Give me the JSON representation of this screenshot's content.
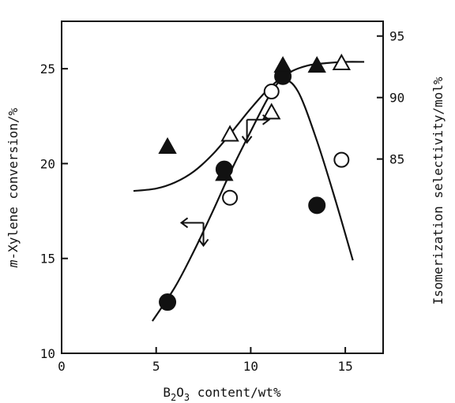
{
  "chart_data": {
    "type": "scatter",
    "title": "",
    "x_axis": {
      "label_parts": [
        "B",
        "2",
        "O",
        "3",
        " content/wt%"
      ],
      "range": [
        0,
        17
      ],
      "ticks": [
        0,
        5,
        10,
        15
      ]
    },
    "y_left": {
      "label_parts": [
        "m",
        "-Xylene conversion/%"
      ],
      "range": [
        10,
        27.5
      ],
      "ticks": [
        10,
        15,
        20,
        25
      ]
    },
    "y_right": {
      "label": "Isomerization selectivity/mol%",
      "range": [
        69.2,
        96.2
      ],
      "ticks": [
        85,
        90,
        95
      ]
    },
    "series": [
      {
        "axis": "left",
        "marker": "circle-filled",
        "x": [
          5.6,
          8.6,
          11.7,
          13.5
        ],
        "y": [
          12.7,
          19.7,
          24.6,
          17.8
        ]
      },
      {
        "axis": "left",
        "marker": "circle-open",
        "x": [
          8.9,
          11.1,
          14.8
        ],
        "y": [
          18.2,
          23.8,
          20.2
        ]
      },
      {
        "axis": "right",
        "marker": "triangle-filled",
        "x": [
          5.6,
          8.6,
          11.7,
          13.5
        ],
        "y": [
          86.0,
          83.8,
          92.6,
          92.6
        ]
      },
      {
        "axis": "right",
        "marker": "triangle-open",
        "x": [
          8.9,
          11.1,
          14.8
        ],
        "y": [
          87.0,
          88.8,
          92.8
        ]
      }
    ],
    "fit_curves": [
      {
        "axis": "left",
        "x": [
          4.8,
          6.0,
          7.0,
          8.0,
          9.0,
          10.0,
          11.0,
          11.7,
          12.5,
          13.5,
          14.5,
          15.4
        ],
        "y": [
          11.7,
          13.5,
          15.4,
          17.5,
          19.7,
          21.7,
          23.6,
          24.4,
          23.8,
          21.2,
          18.0,
          14.9
        ]
      },
      {
        "axis": "right",
        "x": [
          3.8,
          5.0,
          6.0,
          7.0,
          8.0,
          9.0,
          10.0,
          11.0,
          12.0,
          13.0,
          14.0,
          15.0,
          16.0
        ],
        "y": [
          82.4,
          82.6,
          83.1,
          84.0,
          85.4,
          87.2,
          89.1,
          90.8,
          92.0,
          92.6,
          92.8,
          92.9,
          92.9
        ]
      }
    ],
    "annotations": [
      {
        "type": "axis-pointer",
        "axis": "right",
        "x": 9.8,
        "y": 87.3
      },
      {
        "type": "axis-pointer",
        "axis": "left",
        "x": 7.5,
        "y": 16.3
      }
    ]
  }
}
